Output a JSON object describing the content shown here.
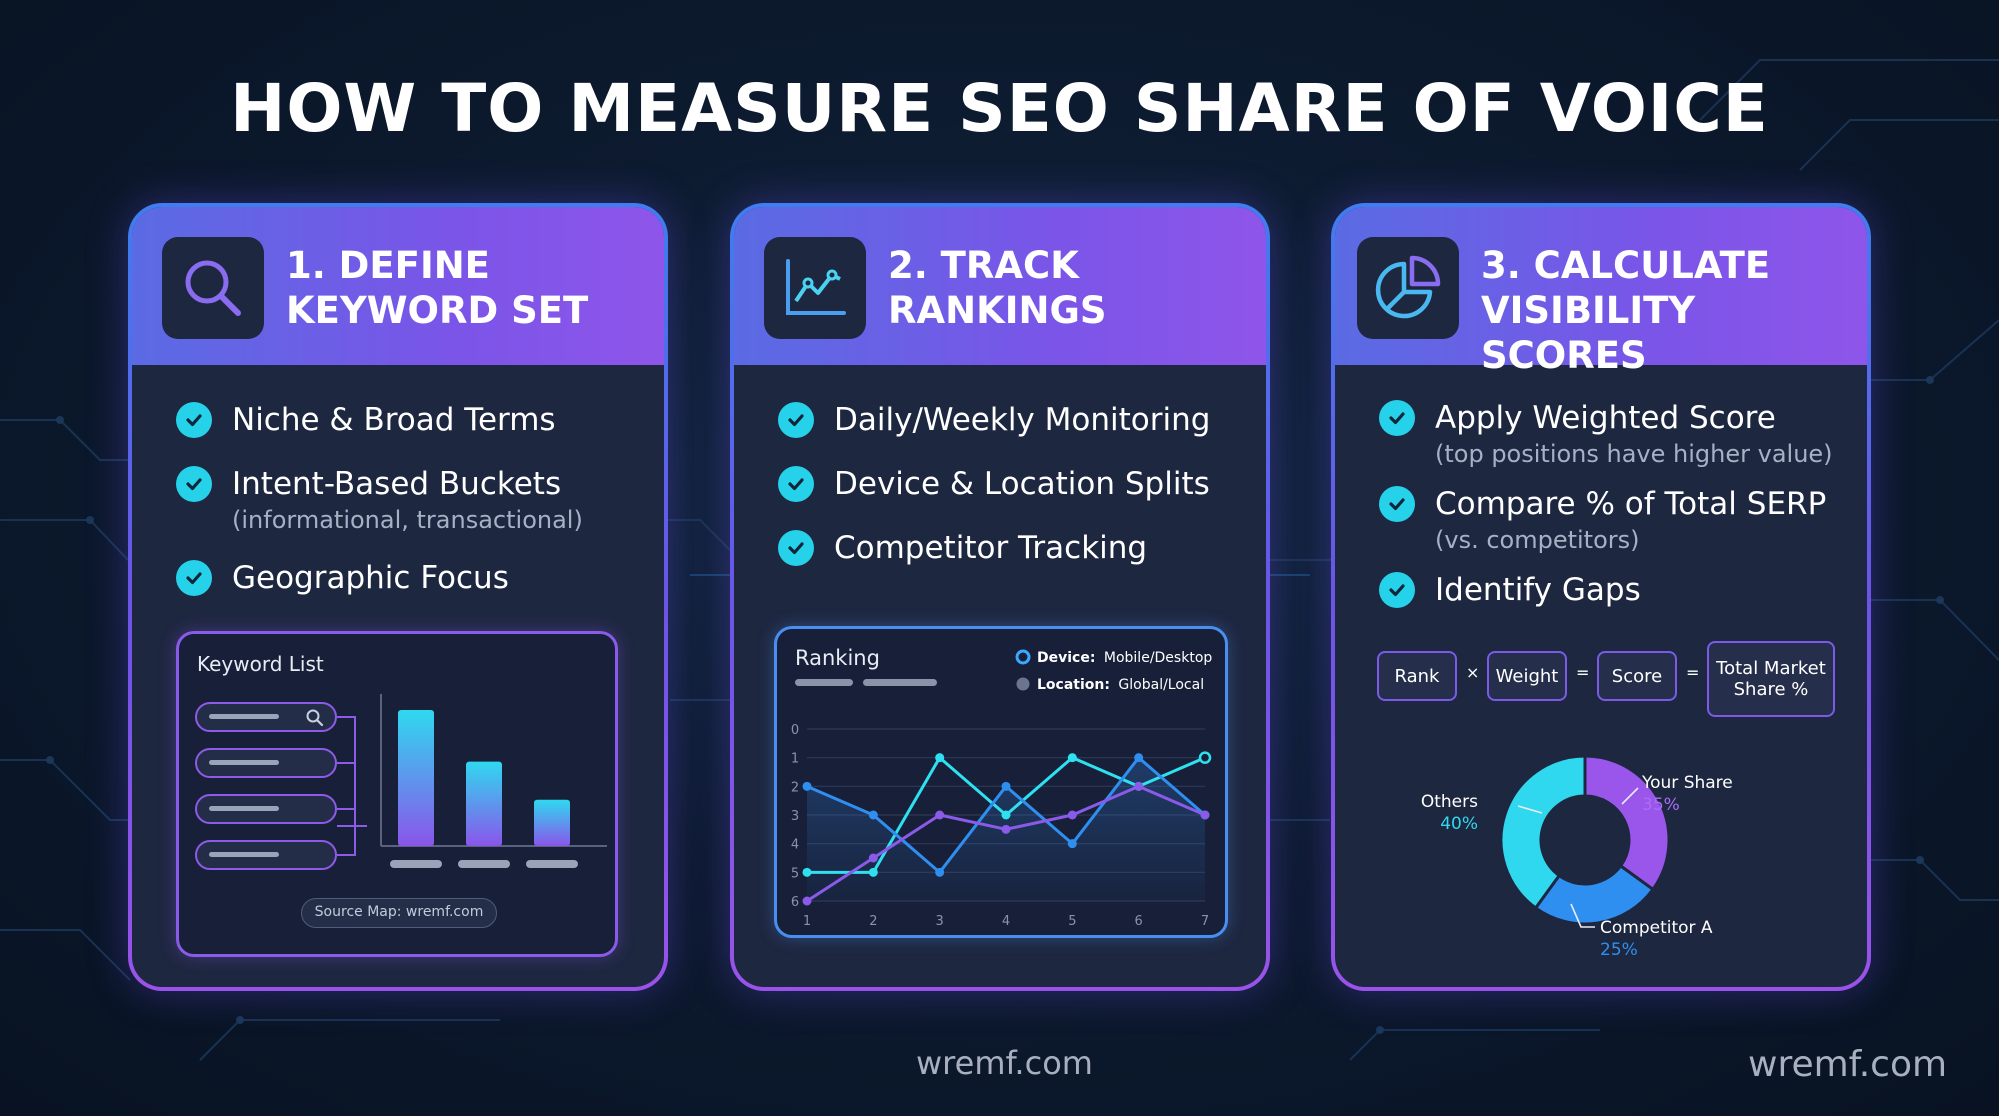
{
  "title": "HOW TO MEASURE SEO SHARE OF VOICE",
  "colors": {
    "accent_cyan": "#26d2ea",
    "accent_purple": "#8a5ae8",
    "accent_blue": "#3f7df0",
    "card_bg": "#1e2740"
  },
  "cards": [
    {
      "icon": "magnifier-icon",
      "heading": "1. DEFINE\nKEYWORD SET",
      "items": [
        {
          "label": "Niche & Broad Terms",
          "sub": ""
        },
        {
          "label": "Intent-Based Buckets",
          "sub": "(informational, transactional)"
        },
        {
          "label": "Geographic Focus",
          "sub": ""
        }
      ],
      "panel": {
        "title": "Keyword List",
        "source": "Source Map: wremf.com",
        "bar_levels": [
          1.0,
          0.62,
          0.34
        ]
      }
    },
    {
      "icon": "line-chart-icon",
      "heading": "2. TRACK\nRANKINGS",
      "items": [
        {
          "label": "Daily/Weekly Monitoring",
          "sub": ""
        },
        {
          "label": "Device & Location Splits",
          "sub": ""
        },
        {
          "label": "Competitor Tracking",
          "sub": ""
        }
      ]
    },
    {
      "icon": "pie-chart-icon",
      "heading": "3. CALCULATE\nVISIBILITY SCORES",
      "items": [
        {
          "label": "Apply Weighted Score",
          "sub": "(top positions have higher value)"
        },
        {
          "label": "Compare % of Total SERP",
          "sub": "(vs. competitors)"
        },
        {
          "label": "Identify Gaps",
          "sub": ""
        }
      ],
      "formula": {
        "terms": [
          "Rank",
          "Weight",
          "Score",
          "Total Market Share %"
        ],
        "operators": [
          "×",
          "=",
          "="
        ]
      }
    }
  ],
  "chart_data": [
    {
      "type": "line",
      "title": "Ranking",
      "legend": [
        {
          "label": "Device:",
          "value": "Mobile/Desktop",
          "color": "#3aa8ff"
        },
        {
          "label": "Location:",
          "value": "Global/Local",
          "color": "#6b7590"
        }
      ],
      "x": [
        1,
        2,
        3,
        4,
        5,
        6,
        7
      ],
      "y_ticks": [
        0,
        1,
        2,
        3,
        4,
        5,
        6
      ],
      "ylim": [
        0,
        6
      ],
      "y_inverted": true,
      "series": [
        {
          "color": "#2fe0f0",
          "values": [
            5,
            5,
            1,
            3,
            1,
            2,
            1
          ]
        },
        {
          "color": "#2f8ff0",
          "values": [
            2,
            3,
            5,
            2,
            4,
            1,
            3
          ]
        },
        {
          "color": "#8a5ae8",
          "values": [
            6,
            4.5,
            3,
            3.5,
            3,
            2,
            3
          ]
        }
      ]
    },
    {
      "type": "pie",
      "donut": true,
      "slices": [
        {
          "name": "Your Share",
          "value": 35,
          "label": "35%",
          "color": "#9a55ea"
        },
        {
          "name": "Competitor A",
          "value": 25,
          "label": "25%",
          "color": "#2f8ff0"
        },
        {
          "name": "Others",
          "value": 40,
          "label": "40%",
          "color": "#2fd8ee"
        }
      ]
    }
  ],
  "footer": {
    "center": "wremf.com",
    "right": "wremf.com"
  }
}
